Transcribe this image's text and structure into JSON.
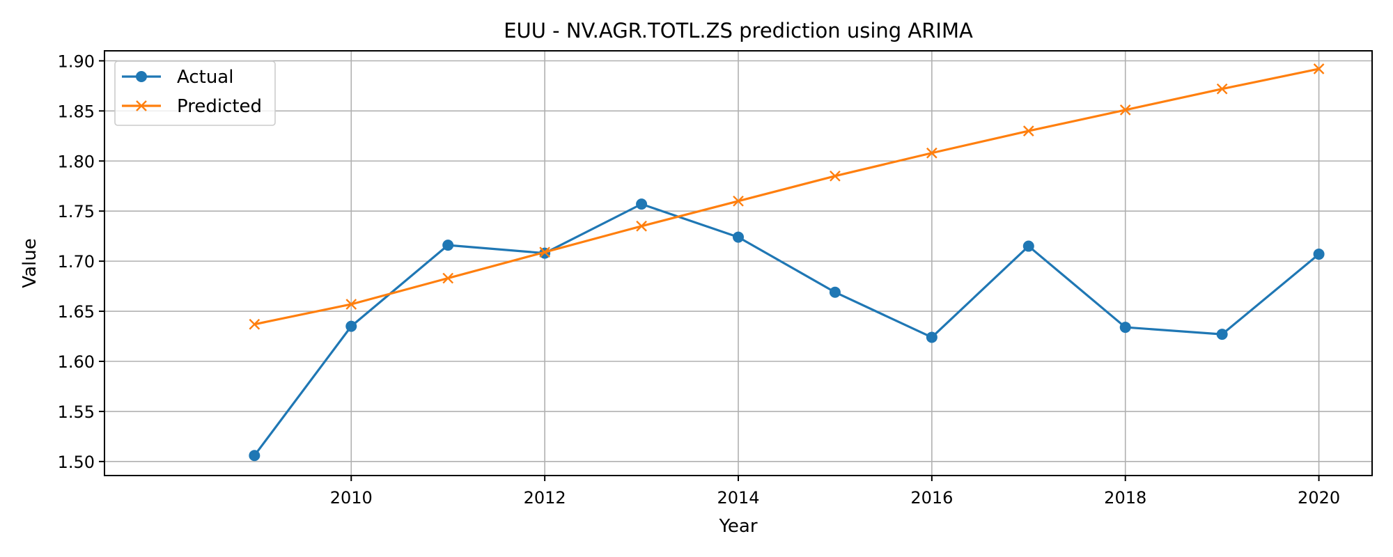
{
  "chart_data": {
    "type": "line",
    "title": "EUU - NV.AGR.TOTL.ZS prediction using ARIMA",
    "xlabel": "Year",
    "ylabel": "Value",
    "x": [
      2009,
      2010,
      2011,
      2012,
      2013,
      2014,
      2015,
      2016,
      2017,
      2018,
      2019,
      2020
    ],
    "xlim": [
      2007.45,
      2020.55
    ],
    "ylim": [
      1.486,
      1.91
    ],
    "xticks": [
      2010,
      2012,
      2014,
      2016,
      2018,
      2020
    ],
    "yticks": [
      1.5,
      1.55,
      1.6,
      1.65,
      1.7,
      1.75,
      1.8,
      1.85,
      1.9
    ],
    "grid": true,
    "legend_position": "top-left",
    "series": [
      {
        "name": "Actual",
        "color": "#1f77b4",
        "marker": "circle",
        "values": [
          1.506,
          1.635,
          1.716,
          1.708,
          1.757,
          1.724,
          1.669,
          1.624,
          1.715,
          1.634,
          1.627,
          1.707
        ]
      },
      {
        "name": "Predicted",
        "color": "#ff7f0e",
        "marker": "x",
        "values": [
          1.637,
          1.657,
          1.683,
          1.709,
          1.735,
          1.76,
          1.785,
          1.808,
          1.83,
          1.851,
          1.872,
          1.892
        ]
      }
    ]
  }
}
